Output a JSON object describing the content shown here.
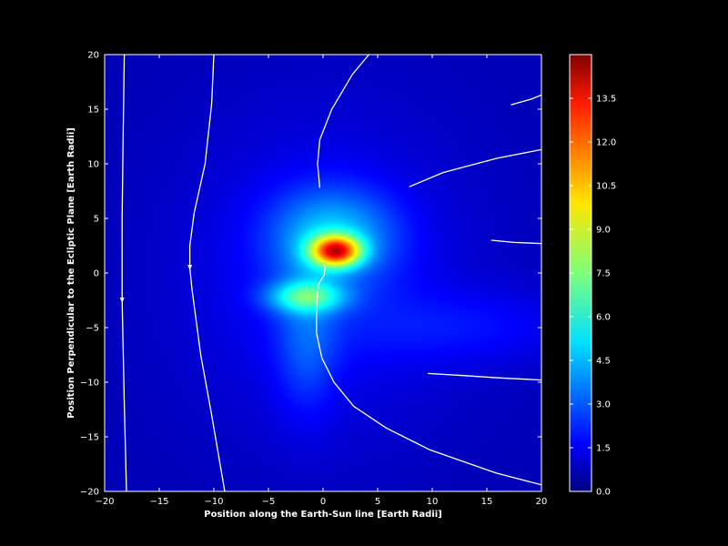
{
  "chart_data": {
    "type": "heatmap",
    "title": "",
    "xlabel": "Position along the Earth-Sun line [Earth Radii]",
    "ylabel": "Position Perpendicular to the Ecliptic Plane [Earth Radii]",
    "xlim": [
      -20,
      20
    ],
    "ylim": [
      -20,
      20
    ],
    "x_ticks": [
      -20,
      -15,
      -10,
      -5,
      0,
      5,
      10,
      15,
      20
    ],
    "y_ticks": [
      -20,
      -15,
      -10,
      -5,
      0,
      5,
      10,
      15,
      20
    ],
    "x_tick_labels": [
      "−20",
      "−15",
      "−10",
      "−5",
      "0",
      "5",
      "10",
      "15",
      "20"
    ],
    "y_tick_labels": [
      "−20",
      "−15",
      "−10",
      "−5",
      "0",
      "5",
      "10",
      "15",
      "20"
    ],
    "colorbar": {
      "colormap": "jet",
      "range": [
        0,
        15
      ],
      "ticks": [
        0.0,
        1.5,
        3.0,
        4.5,
        6.0,
        7.5,
        9.0,
        10.5,
        12.0,
        13.5
      ],
      "tick_labels": [
        "0.0",
        "1.5",
        "3.0",
        "4.5",
        "6.0",
        "7.5",
        "9.0",
        "10.5",
        "12.0",
        "13.5"
      ]
    },
    "background_level": 0.8,
    "features": [
      {
        "name": "peak",
        "x": 1.2,
        "y": 2.0,
        "sx": 1.6,
        "sy": 1.0,
        "value": 9.5
      },
      {
        "name": "upper-lobe",
        "x": 1.0,
        "y": 3.5,
        "sx": 4.0,
        "sy": 3.0,
        "value": 3.0
      },
      {
        "name": "lower-lobe",
        "x": -1.5,
        "y": -2.2,
        "sx": 2.5,
        "sy": 1.0,
        "value": 4.0
      },
      {
        "name": "lower-plume",
        "x": -1.5,
        "y": -6.0,
        "sx": 2.0,
        "sy": 5.0,
        "value": 1.6
      },
      {
        "name": "halo",
        "x": 0,
        "y": 0,
        "sx": 9.0,
        "sy": 10.0,
        "value": 1.2
      },
      {
        "name": "tail",
        "x": 14.0,
        "y": -5.0,
        "sx": 8.0,
        "sy": 2.5,
        "value": 1.0
      }
    ],
    "field_lines": [
      {
        "points": [
          [
            -18.2,
            20
          ],
          [
            -18.3,
            13.0
          ],
          [
            -18.4,
            5.0
          ],
          [
            -18.4,
            -2.5
          ],
          [
            -18.2,
            -12.0
          ],
          [
            -18.0,
            -20.0
          ]
        ],
        "arrow": [
          -18.4,
          -2.5
        ]
      },
      {
        "points": [
          [
            -10.0,
            20
          ],
          [
            -10.2,
            15.5
          ],
          [
            -10.8,
            10.0
          ],
          [
            -11.8,
            5.5
          ],
          [
            -12.2,
            2.5
          ],
          [
            -12.2,
            0.5
          ],
          [
            -12.0,
            -1.5
          ],
          [
            -11.2,
            -7.5
          ],
          [
            -10.2,
            -13.0
          ],
          [
            -9.0,
            -20.0
          ]
        ],
        "arrow": [
          -12.2,
          0.5
        ]
      },
      {
        "points": [
          [
            4.2,
            20
          ],
          [
            2.7,
            18.2
          ],
          [
            0.8,
            15.0
          ],
          [
            -0.3,
            12.2
          ],
          [
            -0.5,
            10.0
          ],
          [
            -0.3,
            7.8
          ]
        ]
      },
      {
        "points": [
          [
            0.0,
            0.8
          ],
          [
            0.2,
            0.6
          ],
          [
            0.1,
            -0.2
          ],
          [
            -0.4,
            -1.0
          ],
          [
            -0.6,
            -3.0
          ],
          [
            -0.6,
            -5.5
          ],
          [
            -0.1,
            -7.8
          ],
          [
            1.0,
            -10.0
          ],
          [
            2.8,
            -12.2
          ],
          [
            5.8,
            -14.2
          ],
          [
            9.8,
            -16.2
          ],
          [
            15.8,
            -18.3
          ],
          [
            20.0,
            -19.4
          ]
        ]
      },
      {
        "points": [
          [
            7.9,
            7.9
          ],
          [
            11.0,
            9.2
          ],
          [
            15.9,
            10.5
          ],
          [
            20.0,
            11.3
          ]
        ]
      },
      {
        "points": [
          [
            17.2,
            15.4
          ],
          [
            19.0,
            15.9
          ],
          [
            20.0,
            16.3
          ]
        ]
      },
      {
        "points": [
          [
            15.4,
            3.0
          ],
          [
            17.5,
            2.8
          ],
          [
            20.0,
            2.7
          ]
        ]
      },
      {
        "points": [
          [
            9.6,
            -9.2
          ],
          [
            13.0,
            -9.4
          ],
          [
            16.0,
            -9.6
          ],
          [
            20.0,
            -9.8
          ]
        ]
      }
    ]
  }
}
